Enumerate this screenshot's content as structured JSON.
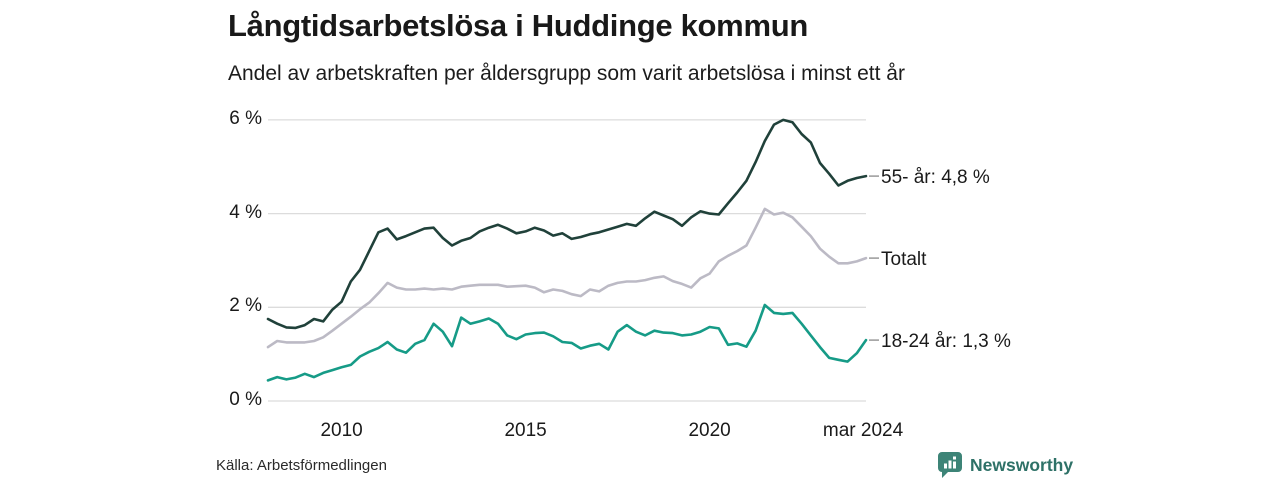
{
  "header": {
    "title": "Långtidsarbetslösa i Huddinge kommun",
    "subtitle": "Andel av arbetskraften per åldersgrupp som varit arbetslösa i minst ett år"
  },
  "footer": {
    "source": "Källa: Arbetsförmedlingen",
    "branding": {
      "name": "Newsworthy",
      "icon": "newsworthy-bar-chart-bubble-icon"
    }
  },
  "colors": {
    "grid": "#dcdcdc",
    "connector": "#999999",
    "text": "#1a1a1a",
    "branding_text": "#2e7167",
    "branding_icon": "#3d8477"
  },
  "chart_data": {
    "type": "line",
    "title": "Långtidsarbetslösa i Huddinge kommun",
    "subtitle": "Andel av arbetskraften per åldersgrupp som varit arbetslösa i minst ett år",
    "unit": "%",
    "grid": "horizontal",
    "legend_position": "right-of-line-ends",
    "xlim": [
      2008.0,
      2024.25
    ],
    "ylim": [
      0,
      6.4
    ],
    "x_start": 2008.0,
    "x_step": 0.25,
    "x_note": "quarterly points from 2008 to mar 2024",
    "xticks": [
      {
        "value": 2010,
        "label": "2010"
      },
      {
        "value": 2015,
        "label": "2015"
      },
      {
        "value": 2020,
        "label": "2020"
      },
      {
        "value": 2024.17,
        "label": "mar 2024"
      }
    ],
    "yticks": [
      {
        "value": 0,
        "label": "0 %"
      },
      {
        "value": 2,
        "label": "2 %"
      },
      {
        "value": 4,
        "label": "4 %"
      },
      {
        "value": 6,
        "label": "6 %"
      }
    ],
    "series": [
      {
        "id": "55-ar",
        "name": "55- år",
        "label": "55- år: 4,8 %",
        "end_value": 4.8,
        "color": "#20413a",
        "values": [
          1.75,
          1.65,
          1.57,
          1.56,
          1.62,
          1.75,
          1.7,
          1.95,
          2.12,
          2.55,
          2.8,
          3.2,
          3.6,
          3.68,
          3.45,
          3.52,
          3.6,
          3.68,
          3.7,
          3.48,
          3.32,
          3.42,
          3.48,
          3.62,
          3.7,
          3.76,
          3.68,
          3.58,
          3.62,
          3.7,
          3.64,
          3.53,
          3.58,
          3.46,
          3.5,
          3.56,
          3.6,
          3.66,
          3.72,
          3.78,
          3.74,
          3.9,
          4.04,
          3.96,
          3.88,
          3.74,
          3.92,
          4.05,
          4.0,
          3.98,
          4.22,
          4.45,
          4.7,
          5.1,
          5.55,
          5.9,
          6.0,
          5.95,
          5.7,
          5.52,
          5.08,
          4.85,
          4.6,
          4.7,
          4.76,
          4.8
        ]
      },
      {
        "id": "totalt",
        "name": "Totalt",
        "label": "Totalt",
        "end_value": 3.05,
        "color": "#bcbac5",
        "values": [
          1.15,
          1.28,
          1.25,
          1.25,
          1.25,
          1.28,
          1.36,
          1.5,
          1.65,
          1.8,
          1.96,
          2.1,
          2.3,
          2.52,
          2.42,
          2.38,
          2.38,
          2.4,
          2.38,
          2.4,
          2.38,
          2.44,
          2.46,
          2.48,
          2.48,
          2.48,
          2.44,
          2.45,
          2.46,
          2.42,
          2.32,
          2.38,
          2.35,
          2.28,
          2.24,
          2.38,
          2.34,
          2.46,
          2.52,
          2.55,
          2.55,
          2.58,
          2.63,
          2.66,
          2.56,
          2.5,
          2.42,
          2.62,
          2.72,
          2.98,
          3.1,
          3.2,
          3.32,
          3.7,
          4.1,
          3.98,
          4.02,
          3.92,
          3.72,
          3.52,
          3.25,
          3.08,
          2.94,
          2.94,
          2.98,
          3.05
        ]
      },
      {
        "id": "18-24-ar",
        "name": "18-24 år",
        "label": "18-24 år: 1,3 %",
        "end_value": 1.3,
        "color": "#169b87",
        "values": [
          0.44,
          0.51,
          0.46,
          0.5,
          0.58,
          0.51,
          0.6,
          0.66,
          0.72,
          0.77,
          0.95,
          1.05,
          1.13,
          1.26,
          1.1,
          1.03,
          1.22,
          1.3,
          1.65,
          1.48,
          1.17,
          1.78,
          1.65,
          1.7,
          1.76,
          1.65,
          1.4,
          1.32,
          1.42,
          1.45,
          1.46,
          1.38,
          1.26,
          1.24,
          1.12,
          1.18,
          1.22,
          1.1,
          1.48,
          1.62,
          1.48,
          1.4,
          1.5,
          1.46,
          1.45,
          1.4,
          1.42,
          1.48,
          1.58,
          1.55,
          1.2,
          1.23,
          1.16,
          1.5,
          2.05,
          1.88,
          1.86,
          1.88,
          1.65,
          1.4,
          1.15,
          0.92,
          0.88,
          0.84,
          1.02,
          1.3
        ]
      }
    ]
  }
}
